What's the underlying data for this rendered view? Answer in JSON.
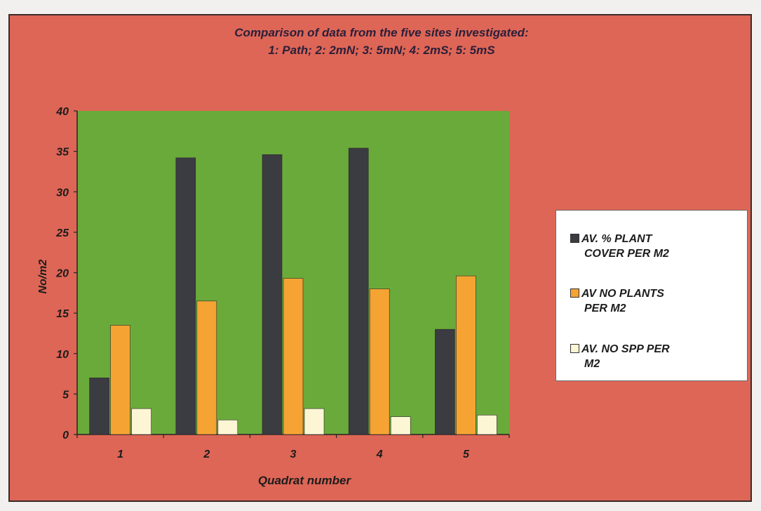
{
  "chart_data": {
    "type": "bar",
    "title_lines": [
      "Comparison of data from the five sites investigated:",
      "1: Path;  2: 2mN;  3: 5mN; 4: 2mS;  5: 5mS"
    ],
    "xlabel": "Quadrat number",
    "ylabel": "No/m2",
    "categories": [
      "1",
      "2",
      "3",
      "4",
      "5"
    ],
    "ylim": [
      0,
      40
    ],
    "yticks": [
      "0",
      "5",
      "10",
      "15",
      "20",
      "25",
      "30",
      "35",
      "40"
    ],
    "series": [
      {
        "name": "AV. % PLANT COVER PER  M2",
        "values": [
          7,
          34.2,
          34.6,
          35.4,
          13
        ],
        "color": "#3b3b42"
      },
      {
        "name": "AV NO PLANTS PER M2",
        "values": [
          13.5,
          16.5,
          19.3,
          18,
          19.6
        ],
        "color": "#f5a433"
      },
      {
        "name": "AV. NO SPP PER M2",
        "values": [
          3.2,
          1.8,
          3.2,
          2.2,
          2.4
        ],
        "color": "#fdf6d4"
      }
    ],
    "plot_background": "#6aaa3a",
    "frame_background": "#de6656",
    "legend_position": "right",
    "grid": false
  },
  "legend": {
    "entries": [
      {
        "line1": "AV. % PLANT",
        "line2": "COVER PER  M2"
      },
      {
        "line1": "AV NO PLANTS",
        "line2": "PER M2"
      },
      {
        "line1": "AV. NO SPP PER",
        "line2": "M2"
      }
    ]
  }
}
